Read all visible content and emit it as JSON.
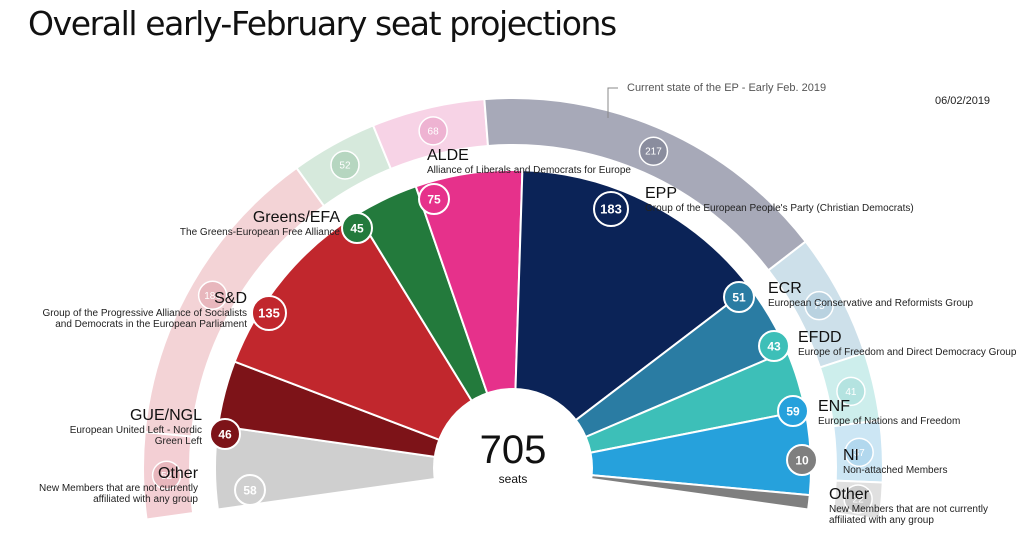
{
  "title": "Overall early-February seat projections",
  "date": "06/02/2019",
  "current_note": "Current state of the EP - Early Feb. 2019",
  "chart_data": {
    "type": "parliament-semicircle",
    "total": {
      "value": "705",
      "unit": "seats"
    },
    "projection": [
      {
        "group": "Other",
        "desc": [
          "New Members that are not currently",
          "affiliated with any group"
        ],
        "seats": 58,
        "color": "#cfcfcf"
      },
      {
        "group": "GUE/NGL",
        "desc": [
          "European United Left - Nordic",
          "Green Left"
        ],
        "seats": 46,
        "color": "#7d1318"
      },
      {
        "group": "S&D",
        "desc": [
          "Group of the Progressive Alliance of Socialists",
          "and Democrats in the European Parliament"
        ],
        "seats": 135,
        "color": "#c1272d"
      },
      {
        "group": "Greens/EFA",
        "desc": [
          "The Greens-European Free Alliance"
        ],
        "seats": 45,
        "color": "#237a3c"
      },
      {
        "group": "ALDE",
        "desc": [
          "Alliance of Liberals and Democrats for Europe"
        ],
        "seats": 75,
        "color": "#e6318b"
      },
      {
        "group": "EPP",
        "desc": [
          "Group of the European People's Party (Christian Democrats)"
        ],
        "seats": 183,
        "color": "#0b2357"
      },
      {
        "group": "ECR",
        "desc": [
          "European Conservative and Reformists Group"
        ],
        "seats": 51,
        "color": "#2a7ca3"
      },
      {
        "group": "EFDD",
        "desc": [
          "Europe of Freedom and Direct Democracy Group"
        ],
        "seats": 43,
        "color": "#3dbfb8"
      },
      {
        "group": "ENF",
        "desc": [
          "Europe of Nations and Freedom"
        ],
        "seats": 59,
        "color": "#26a1dc"
      },
      {
        "group": "NI",
        "desc": [
          "Non-attached Members"
        ],
        "seats": 10,
        "color": "#7f7f7f"
      },
      {
        "group": "Other",
        "desc": [
          "New Members that are not currently",
          "affiliated with any group"
        ],
        "seats": 0,
        "color": "#cfcfcf"
      }
    ],
    "current": [
      {
        "group": "Other",
        "seats": 52,
        "color": "#f3cfd4",
        "bubble": "#e8b7bd"
      },
      {
        "group": "S&D",
        "seats": 186,
        "color": "#f3d3d6",
        "bubble": "#e8b7bd"
      },
      {
        "group": "Greens/EFA",
        "seats": 52,
        "color": "#d6e9dc",
        "bubble": "#b6d6c0"
      },
      {
        "group": "ALDE",
        "seats": 68,
        "color": "#f7d3e6",
        "bubble": "#eeb3d2"
      },
      {
        "group": "EPP",
        "seats": 217,
        "color": "#a7a9b8",
        "bubble": "#8a8d9e"
      },
      {
        "group": "ECR",
        "seats": 75,
        "color": "#cde0ea",
        "bubble": "#b9d2e0"
      },
      {
        "group": "EFDD",
        "seats": 41,
        "color": "#cdeeec",
        "bubble": "#b4e3e0"
      },
      {
        "group": "ENF",
        "seats": 37,
        "color": "#cce6f4",
        "bubble": "#b2d8ee"
      },
      {
        "group": "Other",
        "seats": 22,
        "color": "#e0e0e0",
        "bubble": "#cccccc"
      }
    ]
  }
}
